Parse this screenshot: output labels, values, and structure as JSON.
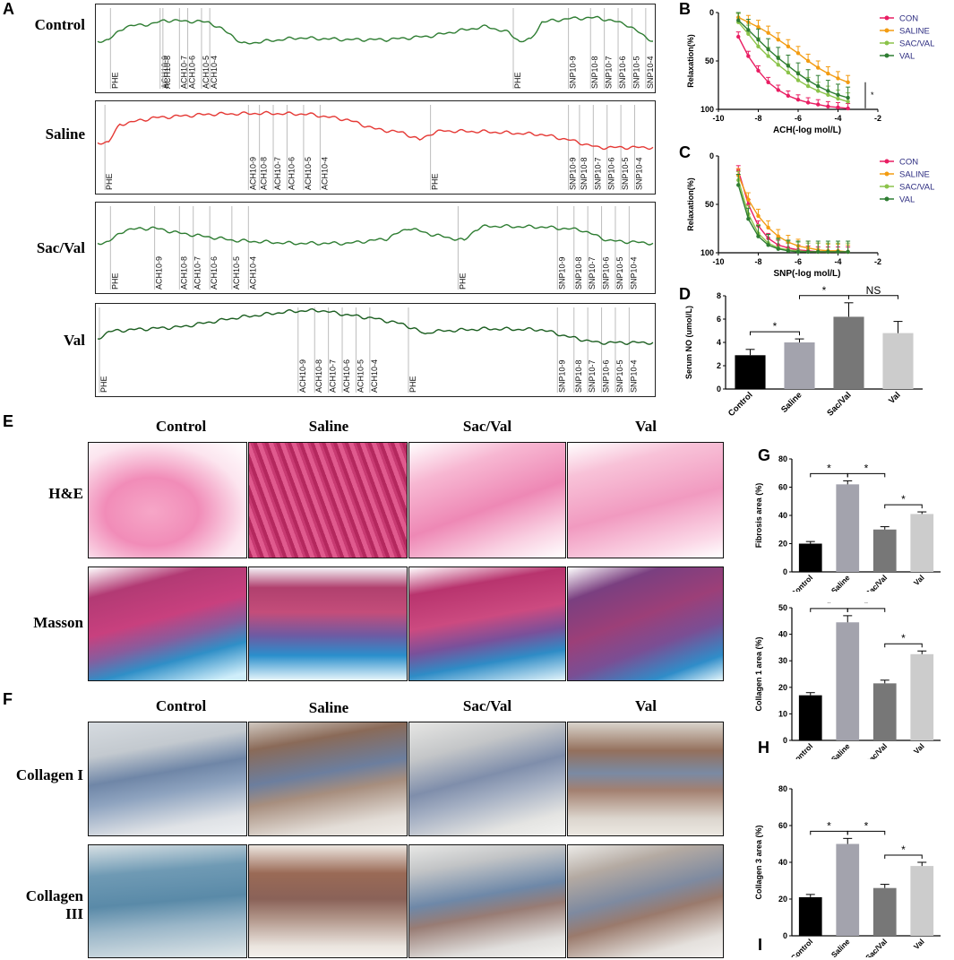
{
  "panel_letters": {
    "A": "A",
    "B": "B",
    "C": "C",
    "D": "D",
    "E": "E",
    "F": "F",
    "G": "G",
    "H": "H",
    "I": "I"
  },
  "panel_a": {
    "traces": [
      {
        "label": "Control",
        "color": "#2e7d32",
        "markers_left": [
          "PHE",
          "ACH10-9",
          "ACH10-8",
          "ACH10-7",
          "ACH10-6",
          "ACH10-5",
          "ACH10-4"
        ],
        "markers_right": [
          "PHE",
          "SNP10-9",
          "SNP10-8",
          "SNP10-7",
          "SNP10-6",
          "SNP10-5",
          "SNP10-4"
        ]
      },
      {
        "label": "Saline",
        "color": "#e53935",
        "markers_left": [
          "PHE",
          "ACH10-9",
          "ACH10-8",
          "ACH10-7",
          "ACH10-6",
          "ACH10-5",
          "ACH10-4"
        ],
        "markers_right": [
          "PHE",
          "SNP10-9",
          "SNP10-8",
          "SNP10-7",
          "SNP10-6",
          "SNP10-5",
          "SNP10-4"
        ]
      },
      {
        "label": "Sac/Val",
        "color": "#2e7d32",
        "markers_left": [
          "PHE",
          "ACH10-9",
          "ACH10-8",
          "ACH10-7",
          "ACH10-6",
          "ACH10-5",
          "ACH10-4"
        ],
        "markers_right": [
          "PHE",
          "SNP10-9",
          "SNP10-8",
          "SNP10-7",
          "SNP10-6",
          "SNP10-5",
          "SNP10-4"
        ]
      },
      {
        "label": "Val",
        "color": "#1b5e20",
        "markers_left": [
          "PHE",
          "ACH10-9",
          "ACH10-8",
          "ACH10-7",
          "ACH10-6",
          "ACH10-5",
          "ACH10-4"
        ],
        "markers_right": [
          "PHE",
          "SNP10-9",
          "SNP10-8",
          "SNP10-7",
          "SNP10-6",
          "SNP10-5",
          "SNP10-4"
        ]
      }
    ]
  },
  "panel_e": {
    "columns": [
      "Control",
      "Saline",
      "Sac/Val",
      "Val"
    ],
    "rows": [
      "H&E",
      "Masson"
    ]
  },
  "panel_f": {
    "columns": [
      "Control",
      "Saline",
      "Sac/Val",
      "Val"
    ],
    "rows": [
      "Collagen I",
      "Collagen III"
    ]
  },
  "colors": {
    "con": "#e91e63",
    "saline": "#f39c12",
    "sacval": "#8bc34a",
    "val": "#2e7d32"
  },
  "chart_data": [
    {
      "id": "B",
      "type": "line",
      "xlabel": "ACH(-log mol/L)",
      "ylabel": "Relaxation(%)",
      "xlim": [
        -10,
        -2
      ],
      "ylim": [
        0,
        100
      ],
      "y_inverted": true,
      "xticks": [
        "-10",
        "-8",
        "-6",
        "-4",
        "-2"
      ],
      "yticks": [
        "0",
        "50",
        "100"
      ],
      "x": [
        -9,
        -8.5,
        -8,
        -7.5,
        -7,
        -6.5,
        -6,
        -5.5,
        -5,
        -4.5,
        -4,
        -3.5
      ],
      "series": [
        {
          "name": "CON",
          "values": [
            25,
            45,
            60,
            72,
            80,
            86,
            90,
            93,
            95,
            97,
            98,
            99
          ]
        },
        {
          "name": "SALINE",
          "values": [
            5,
            10,
            15,
            21,
            28,
            35,
            42,
            50,
            57,
            63,
            68,
            72
          ]
        },
        {
          "name": "SAC/VAL",
          "values": [
            10,
            22,
            35,
            45,
            54,
            62,
            70,
            76,
            81,
            85,
            89,
            92
          ]
        },
        {
          "name": "VAL",
          "values": [
            8,
            18,
            28,
            38,
            47,
            55,
            63,
            70,
            76,
            81,
            85,
            88
          ]
        }
      ],
      "annotation": "*"
    },
    {
      "id": "C",
      "type": "line",
      "xlabel": "SNP(-log mol/L)",
      "ylabel": "Relaxation(%)",
      "xlim": [
        -10,
        -2
      ],
      "ylim": [
        0,
        100
      ],
      "y_inverted": true,
      "xticks": [
        "-10",
        "-8",
        "-6",
        "-4",
        "-2"
      ],
      "yticks": [
        "0",
        "50",
        "100"
      ],
      "x": [
        -9,
        -8.5,
        -8,
        -7.5,
        -7,
        -6.5,
        -6,
        -5.5,
        -5,
        -4.5,
        -4,
        -3.5
      ],
      "series": [
        {
          "name": "CON",
          "values": [
            15,
            50,
            72,
            85,
            92,
            95,
            97,
            98,
            99,
            99,
            99,
            99
          ]
        },
        {
          "name": "SALINE",
          "values": [
            20,
            45,
            62,
            74,
            83,
            89,
            93,
            95,
            97,
            98,
            98,
            99
          ]
        },
        {
          "name": "SAC/VAL",
          "values": [
            25,
            60,
            80,
            90,
            95,
            97,
            98,
            99,
            99,
            99,
            99,
            99
          ]
        },
        {
          "name": "VAL",
          "values": [
            30,
            65,
            83,
            92,
            96,
            98,
            99,
            99,
            99,
            99,
            99,
            99
          ]
        }
      ]
    },
    {
      "id": "D",
      "type": "bar",
      "ylabel": "Serum NO (umol/L)",
      "ylim": [
        0,
        8
      ],
      "yticks": [
        "0",
        "2",
        "4",
        "6",
        "8"
      ],
      "categories": [
        "Control",
        "Saline",
        "Sac/Val",
        "Val"
      ],
      "values": [
        2.9,
        4.0,
        6.2,
        4.8
      ],
      "errors": [
        0.5,
        0.3,
        1.2,
        1.0
      ],
      "significance": [
        "*",
        "*",
        "NS"
      ]
    },
    {
      "id": "G",
      "type": "bar",
      "ylabel": "Fibrosis area (%)",
      "ylim": [
        0,
        80
      ],
      "yticks": [
        "0",
        "20",
        "40",
        "60",
        "80"
      ],
      "categories": [
        "Control",
        "Saline",
        "Sac/Val",
        "Val"
      ],
      "values": [
        20,
        62,
        30,
        41
      ],
      "errors": [
        1.5,
        2.5,
        2,
        1.5
      ],
      "significance": [
        "*",
        "*",
        "*"
      ]
    },
    {
      "id": "H",
      "type": "bar",
      "ylabel": "Collagen 1 area (%)",
      "ylim": [
        0,
        50
      ],
      "yticks": [
        "0",
        "10",
        "20",
        "30",
        "40",
        "50"
      ],
      "categories": [
        "Control",
        "Saline",
        "Sac/Val",
        "Val"
      ],
      "values": [
        17,
        44.5,
        21.5,
        32.5
      ],
      "errors": [
        1,
        2.5,
        1.2,
        1.2
      ],
      "significance": [
        "*",
        "*",
        "*"
      ]
    },
    {
      "id": "I",
      "type": "bar",
      "ylabel": "Collagen 3 area (%)",
      "ylim": [
        0,
        80
      ],
      "yticks": [
        "0",
        "20",
        "40",
        "60",
        "80"
      ],
      "categories": [
        "Control",
        "Saline",
        "Sac/Val",
        "Val"
      ],
      "values": [
        21,
        50,
        26,
        38
      ],
      "errors": [
        1.5,
        3,
        2,
        2
      ],
      "significance": [
        "*",
        "*",
        "*"
      ]
    }
  ]
}
